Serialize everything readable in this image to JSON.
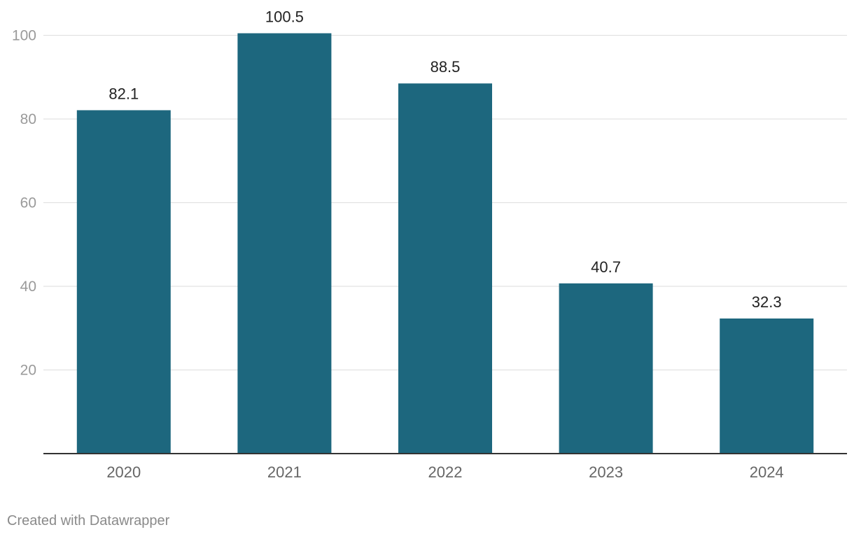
{
  "chart_data": {
    "type": "bar",
    "title": "",
    "xlabel": "",
    "ylabel": "",
    "categories": [
      "2020",
      "2021",
      "2022",
      "2023",
      "2024"
    ],
    "values": [
      82.1,
      100.5,
      88.5,
      40.7,
      32.3
    ],
    "value_labels": [
      "82.1",
      "100.5",
      "88.5",
      "40.7",
      "32.3"
    ],
    "ylim": [
      0,
      100
    ],
    "yticks": [
      20,
      40,
      60,
      80,
      100
    ],
    "ytick_labels": [
      "20",
      "40",
      "60",
      "80",
      "100"
    ],
    "grid": true,
    "legend": "none",
    "colors": {
      "bar": "#1d677e",
      "grid": "#e2e2e2",
      "axis": "#333333",
      "tick_text": "#9a9a9a",
      "category_text": "#666666",
      "value_text": "#222222"
    }
  },
  "footer": {
    "credit": "Created with Datawrapper"
  }
}
